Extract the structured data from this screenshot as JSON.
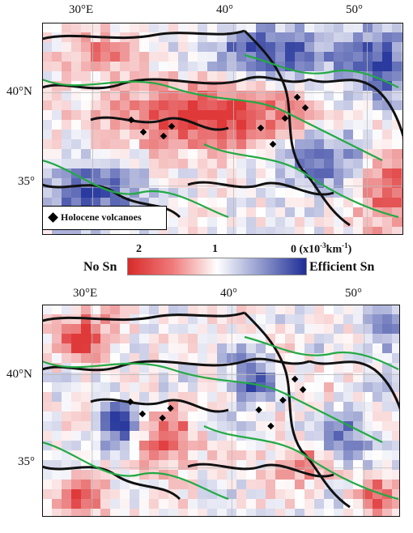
{
  "top_map": {
    "lon_labels": [
      "30°E",
      "40°",
      "50°"
    ],
    "lat_labels": [
      "40°N",
      "35°"
    ],
    "legend": {
      "symbol": "diamond-icon",
      "text": "Holocene volcanoes"
    }
  },
  "colorbar": {
    "ticks": [
      "2",
      "1",
      "0"
    ],
    "unit_prefix": "(x10",
    "unit_exp1": "-3",
    "unit_mid": "km",
    "unit_exp2": "-1",
    "unit_suffix": ")",
    "left_label": "No Sn",
    "right_label": "Efficient Sn",
    "colors": [
      "#d82a2a",
      "#ffffff",
      "#1f2d96"
    ]
  },
  "bottom_map": {
    "lon_labels": [
      "30°E",
      "40°",
      "50°"
    ],
    "lat_labels": [
      "40°N",
      "35°"
    ]
  },
  "colors": {
    "red": "#e0393a",
    "blue": "#2a3a9e",
    "fault_line": "#22aa44",
    "coast_line": "#111111"
  }
}
